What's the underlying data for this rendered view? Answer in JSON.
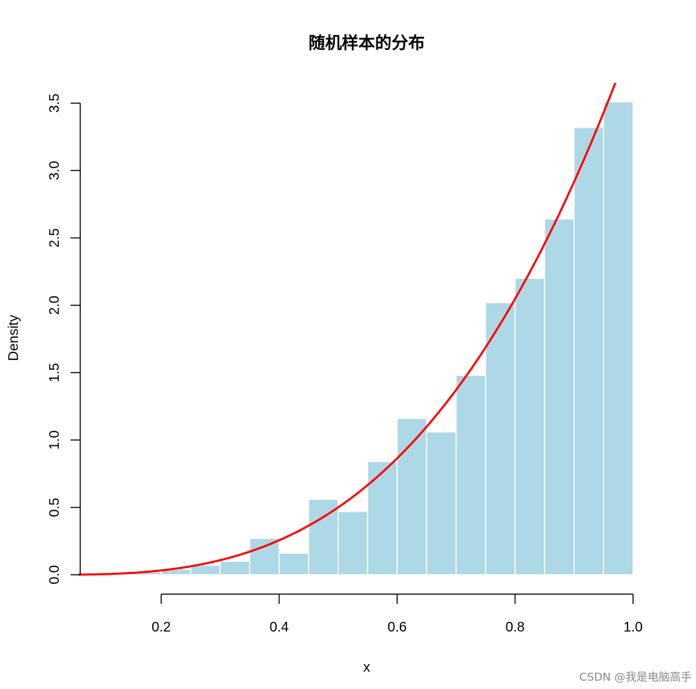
{
  "chart_data": {
    "type": "bar",
    "title": "随机样本的分布",
    "xlabel": "x",
    "ylabel": "Density",
    "xlim": [
      0.06,
      1.0
    ],
    "ylim": [
      0,
      3.5
    ],
    "x_ticks": [
      "0.2",
      "0.4",
      "0.6",
      "0.8",
      "1.0"
    ],
    "y_ticks": [
      "0.0",
      "0.5",
      "1.0",
      "1.5",
      "2.0",
      "2.5",
      "3.0",
      "3.5"
    ],
    "bin_width": 0.05,
    "bins": [
      {
        "x0": 0.15,
        "x1": 0.2,
        "density": 0.02
      },
      {
        "x0": 0.2,
        "x1": 0.25,
        "density": 0.04
      },
      {
        "x0": 0.25,
        "x1": 0.3,
        "density": 0.07
      },
      {
        "x0": 0.3,
        "x1": 0.35,
        "density": 0.1
      },
      {
        "x0": 0.35,
        "x1": 0.4,
        "density": 0.27
      },
      {
        "x0": 0.4,
        "x1": 0.45,
        "density": 0.16
      },
      {
        "x0": 0.45,
        "x1": 0.5,
        "density": 0.56
      },
      {
        "x0": 0.5,
        "x1": 0.55,
        "density": 0.47
      },
      {
        "x0": 0.55,
        "x1": 0.6,
        "density": 0.84
      },
      {
        "x0": 0.6,
        "x1": 0.65,
        "density": 1.16
      },
      {
        "x0": 0.65,
        "x1": 0.7,
        "density": 1.06
      },
      {
        "x0": 0.7,
        "x1": 0.75,
        "density": 1.48
      },
      {
        "x0": 0.75,
        "x1": 0.8,
        "density": 2.02
      },
      {
        "x0": 0.8,
        "x1": 0.85,
        "density": 2.2
      },
      {
        "x0": 0.85,
        "x1": 0.9,
        "density": 2.64
      },
      {
        "x0": 0.9,
        "x1": 0.95,
        "density": 3.32
      },
      {
        "x0": 0.95,
        "x1": 1.0,
        "density": 3.51
      }
    ],
    "curve": {
      "formula": "4*x^3",
      "x_range": [
        0.06,
        0.97
      ],
      "color": "#ff0000"
    },
    "bar_color": "#add8e6",
    "bar_edge_color": "#ffffff",
    "grid": false,
    "legend": "none"
  },
  "watermark": "CSDN @我是电脑高手"
}
